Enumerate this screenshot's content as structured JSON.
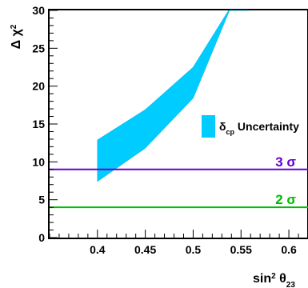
{
  "chart_data": {
    "type": "area",
    "xlabel": "sin² θ₂₃",
    "ylabel": "Δ χ²",
    "xlim": [
      0.35,
      0.62
    ],
    "ylim": [
      0,
      30
    ],
    "xticks": [
      0.4,
      0.45,
      0.5,
      0.55,
      0.6
    ],
    "xtick_labels": [
      "0.4",
      "0.45",
      "0.5",
      "0.55",
      "0.6"
    ],
    "yticks": [
      0,
      5,
      10,
      15,
      20,
      25,
      30
    ],
    "ytick_labels": [
      "0",
      "5",
      "10",
      "15",
      "20",
      "25",
      "30"
    ],
    "grid": false,
    "legend": {
      "position": "right",
      "entries": [
        {
          "label": "δcp Uncertainty",
          "color": "#00ccff"
        }
      ]
    },
    "band": {
      "name": "δcp Uncertainty",
      "color": "#00ccff",
      "x": [
        0.4,
        0.45,
        0.5,
        0.538,
        0.558
      ],
      "lower": [
        7.4,
        11.8,
        18.4,
        30,
        30
      ],
      "upper": [
        12.9,
        16.9,
        22.5,
        30,
        30
      ],
      "upper_reaches_top_at_x": 0.537
    },
    "hlines": [
      {
        "y": 9,
        "label": "3 σ",
        "color": "#6600cc"
      },
      {
        "y": 4,
        "label": "2 σ",
        "color": "#00bb00"
      }
    ]
  }
}
